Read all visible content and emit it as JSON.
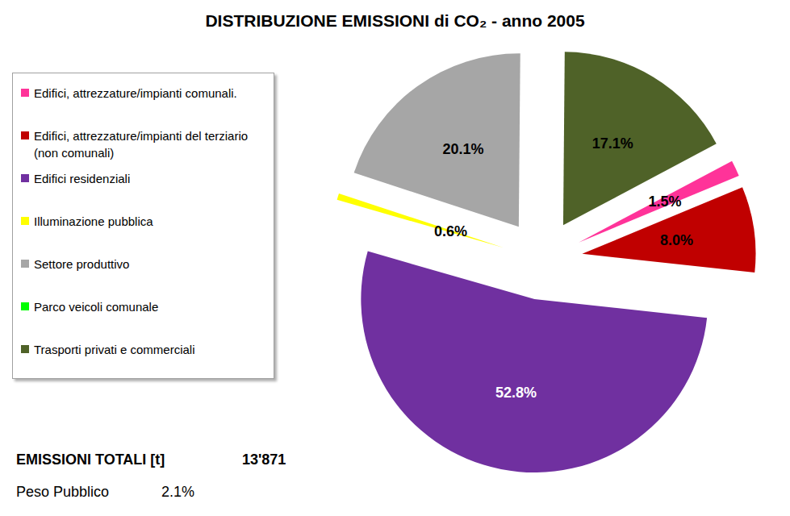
{
  "chart_data": {
    "type": "pie",
    "title": "DISTRIBUZIONE EMISSIONI di CO₂ - anno 2005",
    "categories": [
      "Edifici, attrezzature/impianti comunali.",
      "Edifici, attrezzature/impianti del terziario (non comunali)",
      "Edifici residenziali",
      "Illuminazione pubblica",
      "Settore produttivo",
      "Parco veicoli comunale",
      "Trasporti privati e commerciali"
    ],
    "values": [
      1.5,
      8.0,
      52.8,
      0.6,
      20.1,
      0,
      17.1
    ],
    "value_labels": [
      "1.5%",
      "8.0%",
      "52.8%",
      "0.6%",
      "20.1%",
      null,
      "17.1%"
    ],
    "colors": [
      "#ff3399",
      "#c00000",
      "#7030a0",
      "#ffff00",
      "#a6a6a6",
      "#00ff00",
      "#4f6228"
    ],
    "data_labels": true,
    "legend": "left",
    "annotations": [
      {
        "text": "EMISSIONI TOTALI [t]",
        "value": "13'871"
      },
      {
        "text": "Peso Pubblico",
        "value": "2.1%"
      }
    ]
  }
}
